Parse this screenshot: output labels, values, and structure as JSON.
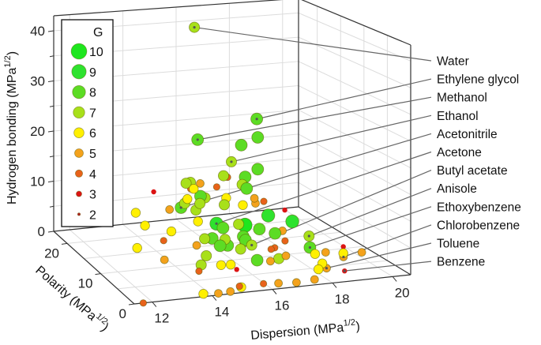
{
  "chart_data": {
    "type": "scatter",
    "projection": "3d",
    "xlabel": "Dispersion (MPa",
    "ylabel": "Polarity (MPa",
    "zlabel": "Hydrogen bonding (MPa",
    "unit_sup": "1/2",
    "unit_close": ")",
    "xlim": [
      11.4,
      20.6
    ],
    "ylim": [
      0,
      24
    ],
    "zlim": [
      0,
      43
    ],
    "xticks": [
      12,
      14,
      16,
      18,
      20
    ],
    "yticks": [
      0,
      10,
      20
    ],
    "zticks": [
      0,
      10,
      20,
      30,
      40
    ],
    "grid": true,
    "legend": {
      "title": "G",
      "placement": "top-left",
      "entries": [
        10,
        9,
        8,
        7,
        6,
        5,
        4,
        3,
        2
      ]
    },
    "color_scale": {
      "10": "#1ee61e",
      "9": "#2ee22e",
      "8": "#5cdc24",
      "7": "#a8e01a",
      "6": "#fff000",
      "5": "#f4a21c",
      "4": "#e8621a",
      "3": "#dc1414",
      "2": "#b02020"
    },
    "labeled_points": [
      {
        "name": "Water",
        "D": 15.5,
        "P": 16.0,
        "H": 42.3,
        "G": 7
      },
      {
        "name": "Ethylene glycol",
        "D": 17.0,
        "P": 11.0,
        "H": 26.0,
        "G": 8
      },
      {
        "name": "Methanol",
        "D": 15.1,
        "P": 12.3,
        "H": 22.3,
        "G": 8
      },
      {
        "name": "Ethanol",
        "D": 15.8,
        "P": 8.8,
        "H": 19.4,
        "G": 7
      },
      {
        "name": "Acetonitrile",
        "D": 15.3,
        "P": 18.0,
        "H": 6.1,
        "G": 8
      },
      {
        "name": "Acetone",
        "D": 15.5,
        "P": 10.4,
        "H": 7.0,
        "G": 9
      },
      {
        "name": "Butyl acetate",
        "D": 15.8,
        "P": 3.7,
        "H": 6.3,
        "G": 7
      },
      {
        "name": "Anisole",
        "D": 17.8,
        "P": 4.1,
        "H": 6.7,
        "G": 7
      },
      {
        "name": "Ethoxybenzene",
        "D": 17.6,
        "P": 2.5,
        "H": 5.5,
        "G": 8
      },
      {
        "name": "Chlorobenzene",
        "D": 19.0,
        "P": 4.3,
        "H": 2.0,
        "G": 5
      },
      {
        "name": "Toluene",
        "D": 18.0,
        "P": 1.4,
        "H": 2.0,
        "G": 5
      },
      {
        "name": "Benzene",
        "D": 18.4,
        "P": 0.0,
        "H": 2.0,
        "G": 3
      }
    ],
    "points": [
      {
        "D": 11.7,
        "P": 0,
        "H": 0,
        "G": 4
      },
      {
        "D": 13.7,
        "P": 0,
        "H": 0.5,
        "G": 6
      },
      {
        "D": 14.2,
        "P": 0,
        "H": 0.3,
        "G": 5
      },
      {
        "D": 14.6,
        "P": 0,
        "H": 0.4,
        "G": 5
      },
      {
        "D": 14.9,
        "P": 0,
        "H": 1.2,
        "G": 4
      },
      {
        "D": 15.0,
        "P": 0.3,
        "H": 0.8,
        "G": 6
      },
      {
        "D": 15.7,
        "P": 0,
        "H": 1.2,
        "G": 4
      },
      {
        "D": 16.2,
        "P": 0,
        "H": 1.0,
        "G": 5
      },
      {
        "D": 16.8,
        "P": 0,
        "H": 0.8,
        "G": 5
      },
      {
        "D": 17.4,
        "P": 0,
        "H": 1.0,
        "G": 5
      },
      {
        "D": 17.6,
        "P": 0.5,
        "H": 2.5,
        "G": 6
      },
      {
        "D": 17.8,
        "P": 1.0,
        "H": 3.2,
        "G": 6
      },
      {
        "D": 17.7,
        "P": 2.0,
        "H": 4.5,
        "G": 6
      },
      {
        "D": 18.2,
        "P": 3.0,
        "H": 4.0,
        "G": 5
      },
      {
        "D": 18.8,
        "P": 3.0,
        "H": 3.5,
        "G": 6
      },
      {
        "D": 19.5,
        "P": 3.5,
        "H": 3.0,
        "G": 5
      },
      {
        "D": 19.1,
        "P": 5.0,
        "H": 3.5,
        "G": 3
      },
      {
        "D": 17.0,
        "P": 4.0,
        "H": 3.5,
        "G": 5
      },
      {
        "D": 16.9,
        "P": 6.0,
        "H": 4.0,
        "G": 4
      },
      {
        "D": 17.4,
        "P": 7.0,
        "H": 4.5,
        "G": 4
      },
      {
        "D": 16.2,
        "P": 2.0,
        "H": 4.0,
        "G": 5
      },
      {
        "D": 16.5,
        "P": 4.0,
        "H": 5.0,
        "G": 4
      },
      {
        "D": 15.0,
        "P": 3.0,
        "H": 3.5,
        "G": 6
      },
      {
        "D": 14.8,
        "P": 4.0,
        "H": 3.0,
        "G": 6
      },
      {
        "D": 15.2,
        "P": 3.0,
        "H": 2.5,
        "G": 3
      },
      {
        "D": 14.0,
        "P": 3.0,
        "H": 4.0,
        "G": 7
      },
      {
        "D": 14.3,
        "P": 4.0,
        "H": 5.0,
        "G": 7
      },
      {
        "D": 14.1,
        "P": 5.0,
        "H": 6.5,
        "G": 5
      },
      {
        "D": 13.8,
        "P": 2.0,
        "H": 3.5,
        "G": 4
      },
      {
        "D": 14.5,
        "P": 6.0,
        "H": 7.0,
        "G": 7
      },
      {
        "D": 14.9,
        "P": 5.0,
        "H": 6.0,
        "G": 8
      },
      {
        "D": 15.2,
        "P": 6.0,
        "H": 6.5,
        "G": 7
      },
      {
        "D": 15.6,
        "P": 5.0,
        "H": 5.0,
        "G": 7
      },
      {
        "D": 15.9,
        "P": 6.0,
        "H": 6.0,
        "G": 8
      },
      {
        "D": 16.1,
        "P": 8.0,
        "H": 5.5,
        "G": 8
      },
      {
        "D": 15.4,
        "P": 8.0,
        "H": 7.5,
        "G": 8
      },
      {
        "D": 15.8,
        "P": 7.0,
        "H": 8.5,
        "G": 7
      },
      {
        "D": 16.3,
        "P": 9.0,
        "H": 7.0,
        "G": 10
      },
      {
        "D": 16.8,
        "P": 9.0,
        "H": 6.0,
        "G": 8
      },
      {
        "D": 17.2,
        "P": 8.0,
        "H": 5.5,
        "G": 8
      },
      {
        "D": 17.5,
        "P": 10.0,
        "H": 4.5,
        "G": 4
      },
      {
        "D": 17.9,
        "P": 11.0,
        "H": 4.0,
        "G": 5
      },
      {
        "D": 18.4,
        "P": 12.0,
        "H": 5.0,
        "G": 9
      },
      {
        "D": 17.7,
        "P": 13.0,
        "H": 6.0,
        "G": 9
      },
      {
        "D": 17.4,
        "P": 14.0,
        "H": 8.0,
        "G": 5
      },
      {
        "D": 16.8,
        "P": 13.0,
        "H": 8.5,
        "G": 6
      },
      {
        "D": 16.5,
        "P": 15.0,
        "H": 9.0,
        "G": 6
      },
      {
        "D": 16.0,
        "P": 12.0,
        "H": 9.5,
        "G": 7
      },
      {
        "D": 15.6,
        "P": 14.0,
        "H": 10.0,
        "G": 7
      },
      {
        "D": 15.3,
        "P": 13.0,
        "H": 11.0,
        "G": 8
      },
      {
        "D": 15.0,
        "P": 12.0,
        "H": 9.0,
        "G": 7
      },
      {
        "D": 14.8,
        "P": 10.0,
        "H": 8.0,
        "G": 6
      },
      {
        "D": 14.6,
        "P": 12.0,
        "H": 10.5,
        "G": 7
      },
      {
        "D": 14.2,
        "P": 13.0,
        "H": 9.0,
        "G": 5
      },
      {
        "D": 14.0,
        "P": 11.0,
        "H": 6.0,
        "G": 6
      },
      {
        "D": 13.6,
        "P": 10.0,
        "H": 5.0,
        "G": 4
      },
      {
        "D": 13.2,
        "P": 12.0,
        "H": 7.0,
        "G": 6
      },
      {
        "D": 13.0,
        "P": 13.0,
        "H": 9.0,
        "G": 6
      },
      {
        "D": 12.8,
        "P": 11.0,
        "H": 3.5,
        "G": 6
      },
      {
        "D": 13.5,
        "P": 9.0,
        "H": 2.0,
        "G": 5
      },
      {
        "D": 13.9,
        "P": 15.0,
        "H": 11.5,
        "G": 3
      },
      {
        "D": 15.2,
        "P": 16.0,
        "H": 12.0,
        "G": 7
      },
      {
        "D": 15.5,
        "P": 17.0,
        "H": 11.5,
        "G": 7
      },
      {
        "D": 16.0,
        "P": 18.0,
        "H": 10.5,
        "G": 5
      },
      {
        "D": 16.6,
        "P": 18.0,
        "H": 9.5,
        "G": 4
      },
      {
        "D": 17.0,
        "P": 19.0,
        "H": 11.0,
        "G": 7
      },
      {
        "D": 17.3,
        "P": 20.0,
        "H": 10.0,
        "G": 4
      },
      {
        "D": 15.8,
        "P": 19.0,
        "H": 9.0,
        "G": 4
      },
      {
        "D": 18.0,
        "P": 16.0,
        "H": 7.0,
        "G": 4
      },
      {
        "D": 18.6,
        "P": 15.0,
        "H": 5.5,
        "G": 3
      },
      {
        "D": 16.4,
        "P": 10.0,
        "H": 3.0,
        "G": 5
      },
      {
        "D": 15.7,
        "P": 9.0,
        "H": 3.5,
        "G": 8
      },
      {
        "D": 15.3,
        "P": 10.0,
        "H": 4.5,
        "G": 8
      },
      {
        "D": 16.9,
        "P": 5.0,
        "H": 2.5,
        "G": 7
      },
      {
        "D": 16.3,
        "P": 6.0,
        "H": 2.0,
        "G": 8
      },
      {
        "D": 14.6,
        "P": 8.0,
        "H": 12.5,
        "G": 7
      },
      {
        "D": 14.3,
        "P": 9.0,
        "H": 13.0,
        "G": 6
      },
      {
        "D": 15.9,
        "P": 5.7,
        "H": 15.8,
        "G": 8
      },
      {
        "D": 16.0,
        "P": 6.8,
        "H": 17.4,
        "G": 8
      },
      {
        "D": 15.8,
        "P": 6.1,
        "H": 16.4,
        "G": 7
      },
      {
        "D": 16.6,
        "P": 8.0,
        "H": 18.0,
        "G": 8
      },
      {
        "D": 16.0,
        "P": 4.5,
        "H": 14.5,
        "G": 5
      },
      {
        "D": 16.8,
        "P": 9.4,
        "H": 23.3,
        "G": 8
      },
      {
        "D": 16.6,
        "P": 12.0,
        "H": 20.7,
        "G": 8
      },
      {
        "D": 14.0,
        "P": 5.0,
        "H": 17.0,
        "G": 6
      }
    ]
  }
}
